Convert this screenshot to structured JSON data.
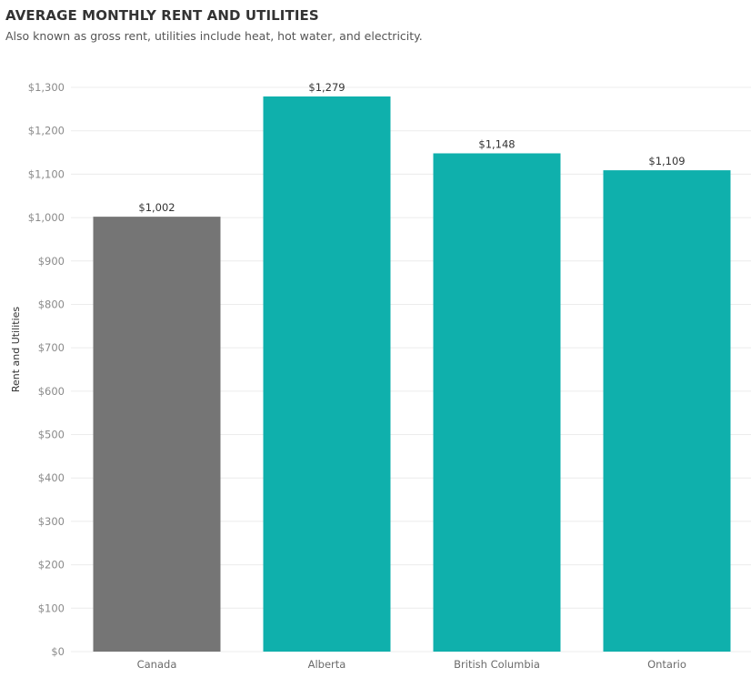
{
  "chart_data": {
    "type": "bar",
    "title": "AVERAGE MONTHLY RENT AND UTILITIES",
    "subtitle": "Also known as gross rent, utilities include heat, hot water, and electricity.",
    "xlabel": "",
    "ylabel": "Rent and Utilities",
    "categories": [
      "Canada",
      "Alberta",
      "British Columbia",
      "Ontario"
    ],
    "values": [
      1002,
      1279,
      1148,
      1109
    ],
    "value_labels": [
      "$1,002",
      "$1,279",
      "$1,148",
      "$1,109"
    ],
    "bar_colors": [
      "#757575",
      "#0fb0ac",
      "#0fb0ac",
      "#0fb0ac"
    ],
    "ylim": [
      0,
      1300
    ],
    "yticks": [
      0,
      100,
      200,
      300,
      400,
      500,
      600,
      700,
      800,
      900,
      1000,
      1100,
      1200,
      1300
    ],
    "ytick_labels": [
      "$0",
      "$100",
      "$200",
      "$300",
      "$400",
      "$500",
      "$600",
      "$700",
      "$800",
      "$900",
      "$1,000",
      "$1,100",
      "$1,200",
      "$1,300"
    ],
    "grid": true,
    "legend": "none"
  }
}
